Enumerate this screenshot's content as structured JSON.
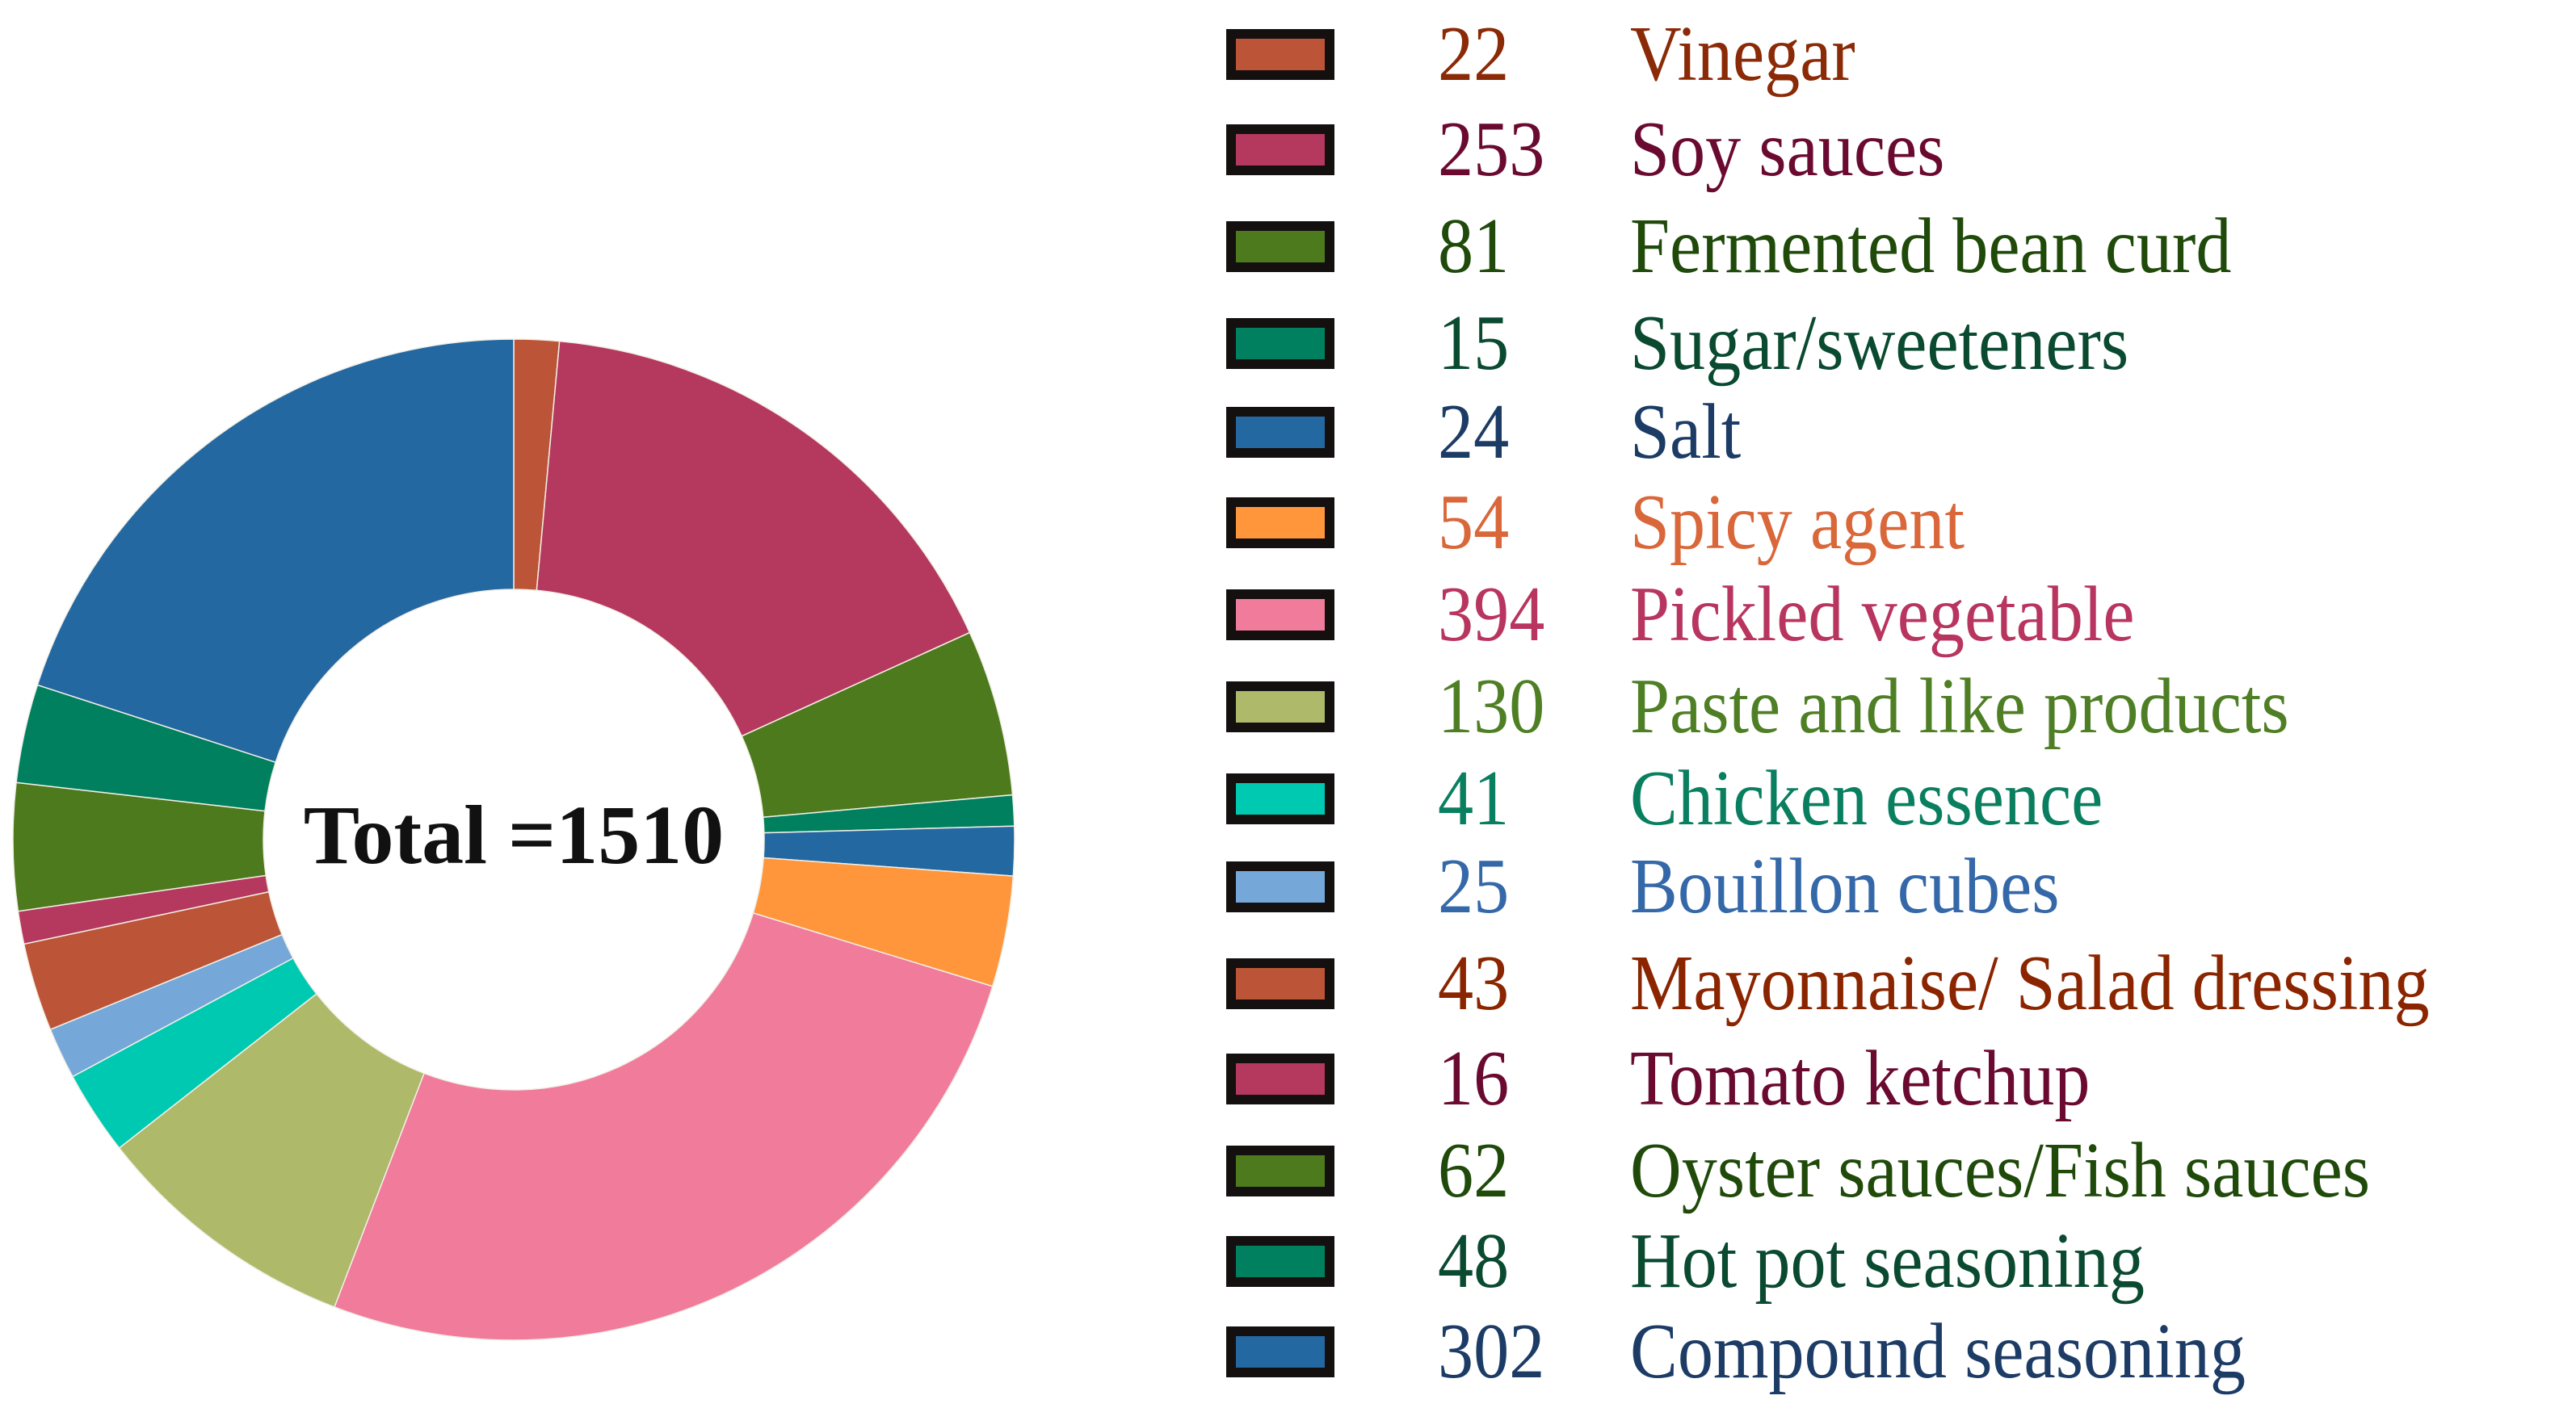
{
  "chart_data": {
    "type": "pie",
    "subtype": "donut",
    "title": "",
    "center_label": "Total =1510",
    "total": 1510,
    "start_angle_deg": 0,
    "direction": "clockwise",
    "legend_position": "right",
    "categories": [
      "Vinegar",
      "Soy sauces",
      "Fermented bean curd",
      "Sugar/sweeteners",
      "Salt",
      "Spicy agent",
      "Pickled vegetable",
      "Paste and like products",
      "Chicken essence",
      "Bouillon cubes",
      "Mayonnaise/ Salad dressing",
      "Tomato ketchup",
      "Oyster sauces/Fish sauces",
      "Hot pot seasoning",
      "Compound seasoning"
    ],
    "values": [
      22,
      253,
      81,
      15,
      24,
      54,
      394,
      130,
      41,
      25,
      43,
      16,
      62,
      48,
      302
    ],
    "slice_colors": [
      "#bc5538",
      "#b5385e",
      "#4e7a1e",
      "#00805f",
      "#2468a2",
      "#ff963c",
      "#f07b9b",
      "#aeb96a",
      "#00c9b2",
      "#75a8d8",
      "#bc5538",
      "#b5385e",
      "#4e7a1e",
      "#00805f",
      "#2468a2"
    ]
  },
  "legend": {
    "items": [
      {
        "value": "22",
        "label": "Vinegar",
        "swatch": "#bc5538",
        "text_color": "#8a2a06"
      },
      {
        "value": "253",
        "label": "Soy sauces",
        "swatch": "#b5385e",
        "text_color": "#6a0a30"
      },
      {
        "value": "81",
        "label": "Fermented bean curd",
        "swatch": "#4e7a1e",
        "text_color": "#1f4a0a"
      },
      {
        "value": "15",
        "label": "Sugar/sweeteners",
        "swatch": "#00805f",
        "text_color": "#0a4a30"
      },
      {
        "value": "24",
        "label": "Salt",
        "swatch": "#2468a2",
        "text_color": "#1c3c66"
      },
      {
        "value": "54",
        "label": "Spicy agent",
        "swatch": "#ff963c",
        "text_color": "#d9673a"
      },
      {
        "value": "394",
        "label": "Pickled vegetable",
        "swatch": "#f07b9b",
        "text_color": "#b83560"
      },
      {
        "value": "130",
        "label": "Paste and like products",
        "swatch": "#aeb96a",
        "text_color": "#4f7f25"
      },
      {
        "value": "41",
        "label": "Chicken essence",
        "swatch": "#00c9b2",
        "text_color": "#0a7f60"
      },
      {
        "value": "25",
        "label": "Bouillon cubes",
        "swatch": "#75a8d8",
        "text_color": "#3568a8"
      },
      {
        "value": "43",
        "label": "Mayonnaise/ Salad dressing",
        "swatch": "#bc5538",
        "text_color": "#8a2500"
      },
      {
        "value": "16",
        "label": "Tomato ketchup",
        "swatch": "#b5385e",
        "text_color": "#6a0a30"
      },
      {
        "value": "62",
        "label": "Oyster sauces/Fish sauces",
        "swatch": "#4e7a1e",
        "text_color": "#1f4a0a"
      },
      {
        "value": "48",
        "label": "Hot pot seasoning",
        "swatch": "#00805f",
        "text_color": "#0a4a30"
      },
      {
        "value": "302",
        "label": "Compound seasoning",
        "swatch": "#2468a2",
        "text_color": "#1c3c66"
      }
    ]
  }
}
